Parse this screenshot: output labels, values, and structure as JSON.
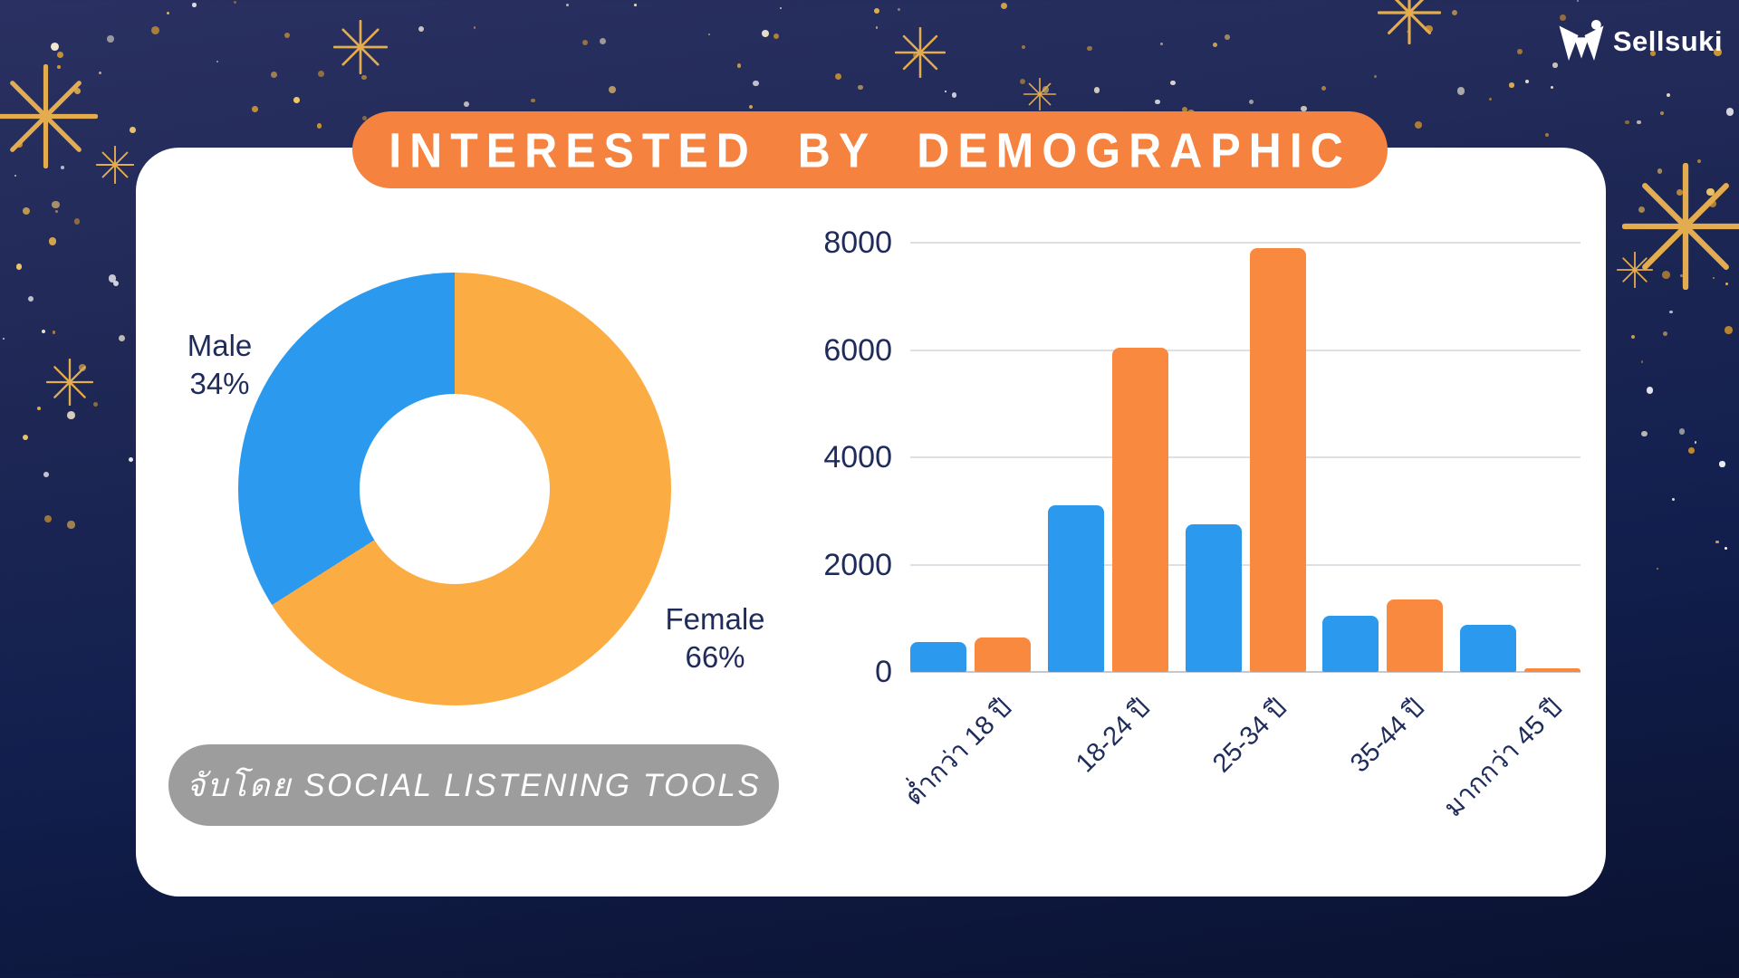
{
  "brand": {
    "name": "Sellsuki",
    "logo_icon": "sellsuki-mark"
  },
  "title": "INTERESTED BY DEMOGRAPHIC",
  "caption": "จับโดย SOCIAL LISTENING TOOLS",
  "colors": {
    "background_top": "#2A3162",
    "background_bottom": "#0A1230",
    "banner_orange": "#F5823E",
    "card_white": "#FFFFFF",
    "caption_pill_gray": "#9D9D9D",
    "text_navy": "#1F2B5A",
    "blue": "#2B9AEE",
    "donut_orange": "#FBAD43",
    "bar_orange": "#F9893F",
    "star_gold": "#E3AC4E"
  },
  "chart_data": [
    {
      "type": "pie",
      "variant": "donut",
      "segments": [
        {
          "label": "Male",
          "value": 34,
          "display": "34%",
          "color": "#2B9AEE"
        },
        {
          "label": "Female",
          "value": 66,
          "display": "66%",
          "color": "#FBAD43"
        }
      ],
      "legend_position": "callouts-left-right"
    },
    {
      "type": "bar",
      "categories": [
        "ต่ำกว่า 18 ปี",
        "18-24 ปี",
        "25-34 ปี",
        "35-44 ปี",
        "มากกว่า 45 ปี"
      ],
      "series": [
        {
          "name": "blue",
          "color": "#2B9AEE",
          "values": [
            550,
            3100,
            2750,
            1050,
            870
          ]
        },
        {
          "name": "orange",
          "color": "#F9893F",
          "values": [
            640,
            6050,
            7900,
            1350,
            60
          ]
        }
      ],
      "ylim": [
        0,
        8000
      ],
      "yticks": [
        0,
        2000,
        4000,
        6000,
        8000
      ],
      "grid": true,
      "legend": "none",
      "xtick_rotation": -45
    }
  ]
}
